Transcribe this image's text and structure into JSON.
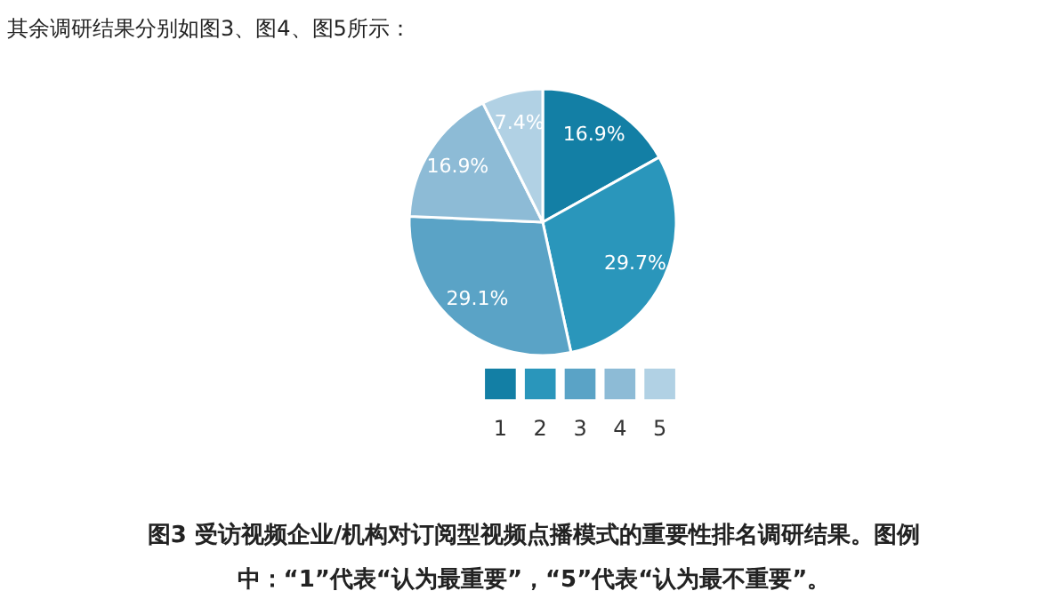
{
  "chart_data": {
    "type": "pie",
    "categories": [
      "1",
      "2",
      "3",
      "4",
      "5"
    ],
    "values": [
      16.9,
      29.7,
      29.1,
      16.9,
      7.4
    ],
    "value_labels": [
      "16.9%",
      "29.7%",
      "29.1%",
      "16.9%",
      "7.4%"
    ],
    "colors": [
      "#137fa5",
      "#2a96bb",
      "#5aa3c6",
      "#8dbbd6",
      "#b1d1e4"
    ],
    "legend": "bottom",
    "annotations": [
      "其余调研结果分别如图3、图4、图5所示：",
      "图3  受访视频企业/机构对订阅型视频点播模式的重要性排名调研结果。图例",
      "中：“1”代表“认为最重要”，“5”代表“认为最不重要”。"
    ]
  }
}
